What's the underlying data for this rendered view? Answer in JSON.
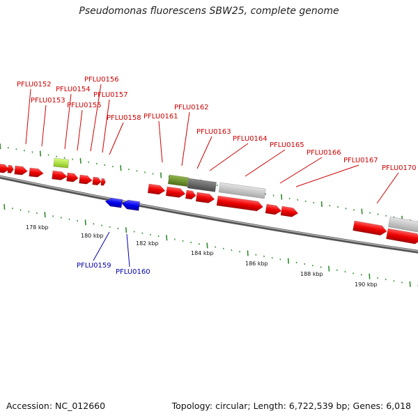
{
  "title": "Pseudomonas fluorescens SBW25, complete genome",
  "footer": {
    "accession": "Accession: NC_012660",
    "summary": "Topology: circular; Length: 6,722,539 bp; Genes: 6,018"
  },
  "scale_labels": [
    "178 kbp",
    "180 kbp",
    "182 kbp",
    "184 kbp",
    "186 kbp",
    "188 kbp",
    "190 kbp"
  ],
  "colors": {
    "forward_gene": "#ee0000",
    "reverse_gene": "#0000ee",
    "label_forward": "#cc0000",
    "label_reverse": "#0000aa",
    "pseudo_green_light": "#a6e22e",
    "pseudo_green_dark": "#6b8e23",
    "dark_gray": "#666666",
    "light_gray": "#c8c8c8",
    "backbone": "#808080",
    "tick_major": "#2e8b2e",
    "tick_minor": "#2e8b2e"
  },
  "genes_upper": [
    {
      "name": "PFLU0152"
    },
    {
      "name": "PFLU0153"
    },
    {
      "name": "PFLU0154"
    },
    {
      "name": "PFLU0155"
    },
    {
      "name": "PFLU0156"
    },
    {
      "name": "PFLU0157"
    },
    {
      "name": "PFLU0158"
    },
    {
      "name": "PFLU0161"
    },
    {
      "name": "PFLU0162"
    },
    {
      "name": "PFLU0163"
    },
    {
      "name": "PFLU0164"
    },
    {
      "name": "PFLU0165"
    },
    {
      "name": "PFLU0166"
    },
    {
      "name": "PFLU0167"
    },
    {
      "name": "PFLU0170"
    }
  ],
  "genes_lower": [
    {
      "name": "PFLU0159"
    },
    {
      "name": "PFLU0160"
    }
  ]
}
